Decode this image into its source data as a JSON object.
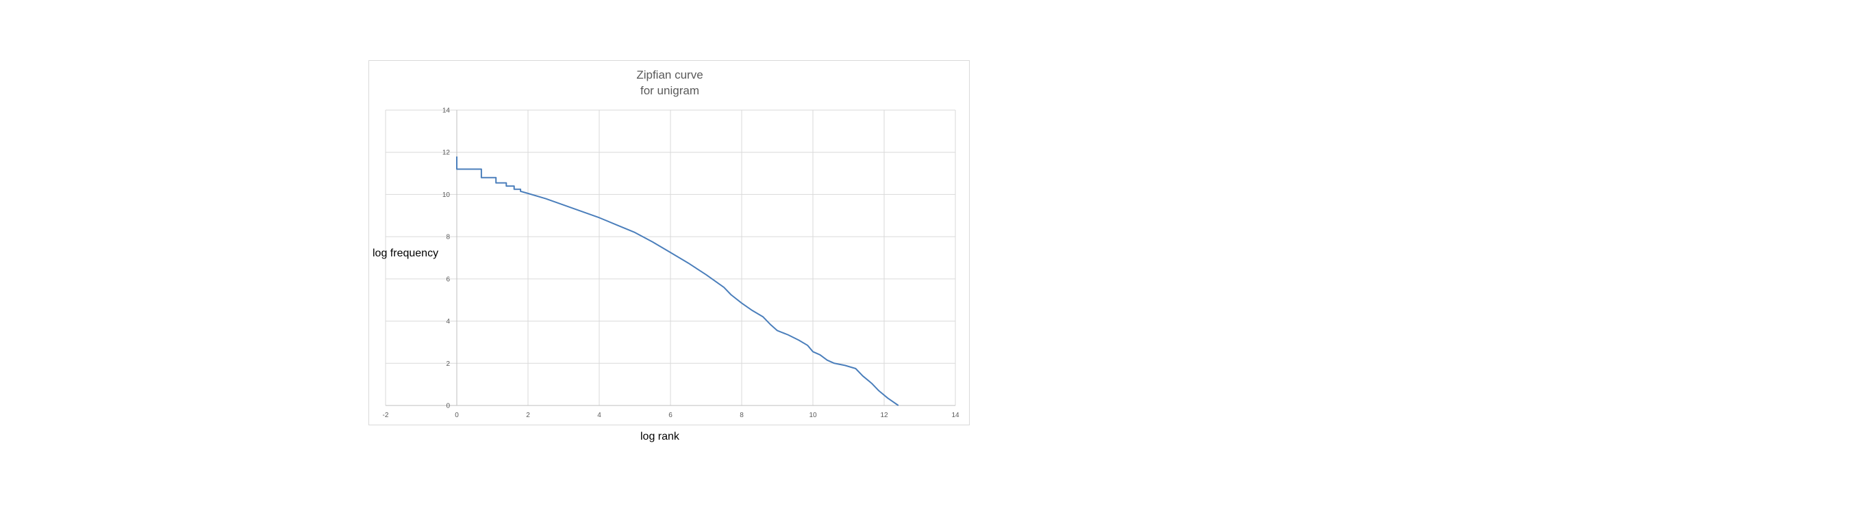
{
  "chart_data": {
    "type": "line",
    "title_lines": [
      "Zipfian curve",
      "for unigram"
    ],
    "xlabel": "log rank",
    "ylabel": "log frequency",
    "xlim": [
      -2,
      14
    ],
    "ylim": [
      0,
      14
    ],
    "x_ticks": [
      -2,
      0,
      2,
      4,
      6,
      8,
      10,
      12,
      14
    ],
    "y_ticks": [
      0,
      2,
      4,
      6,
      8,
      10,
      12,
      14
    ],
    "grid": true,
    "colors": {
      "series": "#4a7ebb",
      "grid": "#d9d9d9",
      "text": "#595959"
    },
    "series": [
      {
        "points": [
          [
            0,
            11.8
          ],
          [
            0,
            11.2
          ],
          [
            0.69,
            11.2
          ],
          [
            0.69,
            10.8
          ],
          [
            1.1,
            10.8
          ],
          [
            1.1,
            10.55
          ],
          [
            1.39,
            10.55
          ],
          [
            1.39,
            10.4
          ],
          [
            1.61,
            10.4
          ],
          [
            1.61,
            10.25
          ],
          [
            1.79,
            10.25
          ],
          [
            1.79,
            10.15
          ],
          [
            2.0,
            10.05
          ],
          [
            2.5,
            9.8
          ],
          [
            3.0,
            9.5
          ],
          [
            3.5,
            9.2
          ],
          [
            4.0,
            8.9
          ],
          [
            4.5,
            8.55
          ],
          [
            5.0,
            8.2
          ],
          [
            5.5,
            7.75
          ],
          [
            6.0,
            7.25
          ],
          [
            6.5,
            6.75
          ],
          [
            7.0,
            6.2
          ],
          [
            7.5,
            5.6
          ],
          [
            7.7,
            5.25
          ],
          [
            8.0,
            4.85
          ],
          [
            8.3,
            4.5
          ],
          [
            8.6,
            4.2
          ],
          [
            8.8,
            3.85
          ],
          [
            9.0,
            3.55
          ],
          [
            9.3,
            3.35
          ],
          [
            9.6,
            3.1
          ],
          [
            9.85,
            2.85
          ],
          [
            10.0,
            2.55
          ],
          [
            10.2,
            2.4
          ],
          [
            10.4,
            2.15
          ],
          [
            10.6,
            2.0
          ],
          [
            10.9,
            1.9
          ],
          [
            11.2,
            1.75
          ],
          [
            11.4,
            1.4
          ],
          [
            11.65,
            1.05
          ],
          [
            11.85,
            0.7
          ],
          [
            12.1,
            0.35
          ],
          [
            12.4,
            0.0
          ]
        ]
      }
    ]
  }
}
